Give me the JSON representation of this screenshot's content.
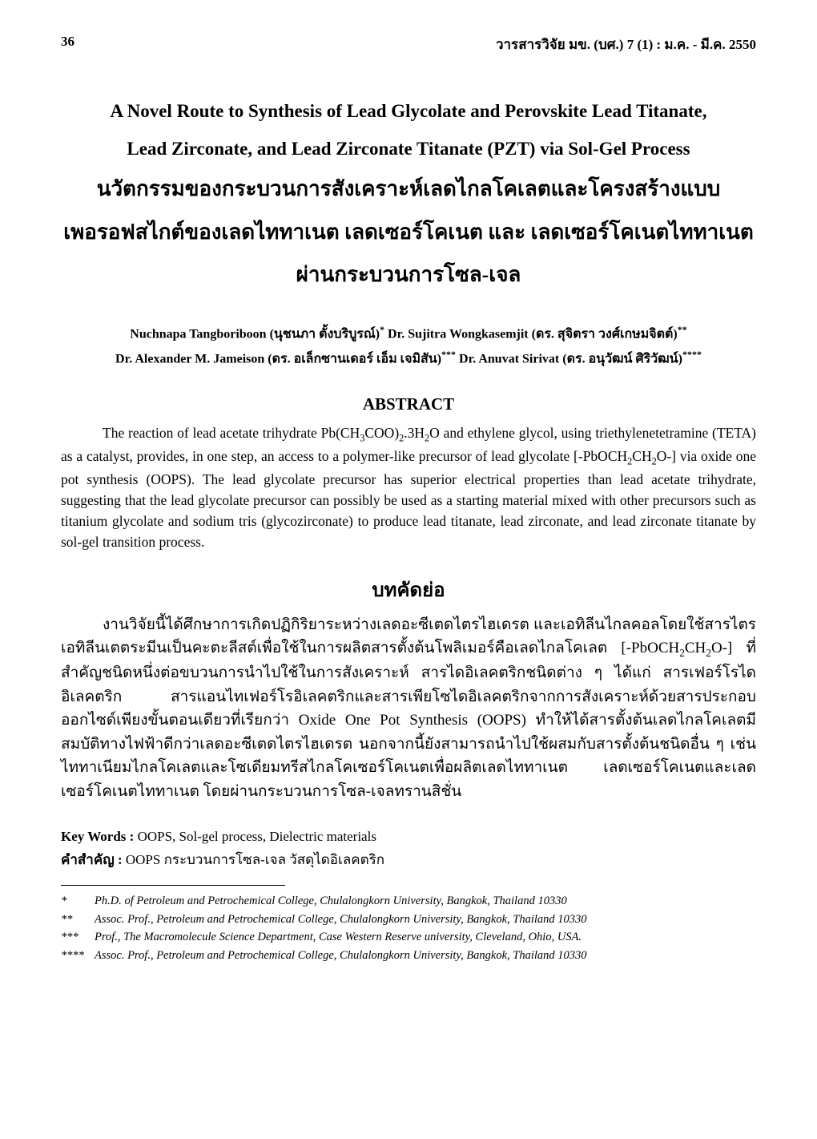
{
  "header": {
    "page_number": "36",
    "journal_ref": "วารสารวิจัย มข. (บศ.) 7 (1) : ม.ค. - มี.ค. 2550"
  },
  "title": {
    "en_line1": "A Novel Route to Synthesis of Lead Glycolate and Perovskite Lead Titanate,",
    "en_line2": "Lead Zirconate, and Lead Zirconate Titanate (PZT) via Sol-Gel Process",
    "th_line1": "นวัตกรรมของกระบวนการสังเคราะห์เลดไกลโคเลตและโครงสร้างแบบ",
    "th_line2": "เพอรอฟสไกต์ของเลดไททาเนต เลดเซอร์โคเนต และ เลดเซอร์โคเนตไททาเนต",
    "th_line3": "ผ่านกระบวนการโซล-เจล"
  },
  "authors": {
    "line1_pre": "Nuchnapa Tangboriboon (นุชนภา ตั้งบริบูรณ์)",
    "line1_sup": "*",
    "line1_mid": " Dr. Sujitra Wongkasemjit (ดร. สุจิตรา วงศ์เกษมจิตต์)",
    "line1_sup2": "**",
    "line2_a": "Dr. Alexander M. Jameison (ดร. อเล็กซานเดอร์ เอ็ม เจมิสัน)",
    "line2_sup": "***",
    "line2_b": " Dr. Anuvat  Sirivat (ดร. อนุวัฒน์ ศิริวัฒน์)",
    "line2_sup2": "****"
  },
  "abstract": {
    "heading": "ABSTRACT",
    "body_pre": "The reaction of lead acetate trihydrate Pb(CH",
    "body_s1": "3",
    "body_p2": "COO)",
    "body_s2": "2",
    "body_p3": ".3H",
    "body_s3": "2",
    "body_p4": "O and ethylene glycol, using triethylenetetramine (TETA) as a catalyst, provides, in one step, an access to a polymer-like precursor of lead glycolate [-PbOCH",
    "body_s4": "2",
    "body_p5": "CH",
    "body_s5": "2",
    "body_p6": "O-] via oxide one pot synthesis (OOPS). The lead glycolate precursor has superior electrical properties than lead acetate trihydrate, suggesting that the lead glycolate precursor can possibly be used as a starting material mixed with other precursors such as titanium glycolate and sodium tris (glycozirconate) to produce lead titanate, lead zirconate, and lead zirconate titanate by sol-gel transition process."
  },
  "abstract_th": {
    "heading": "บทคัดย่อ",
    "body_p1": "งานวิจัยนี้ได้ศึกษาการเกิดปฏิกิริยาระหว่างเลดอะซีเตดไตรไฮเดรต และเอทิลีนไกลคอลโดยใช้สารไตรเอทิลีนเตตระมีนเป็นคะตะลีสต์เพื่อใช้ในการผลิตสารตั้งต้นโพลิเมอร์คือเลดไกลโคเลต [-PbOCH",
    "body_s1": "2",
    "body_p2": "CH",
    "body_s2": "2",
    "body_p3": "O-] ที่สำคัญชนิดหนึ่งต่อขบวนการนำไปใช้ในการสังเคราะห์ สารไดอิเลคตริกชนิดต่าง ๆ ได้แก่ สารเฟอร์โรไดอิเลคตริก สารแอนไทเฟอร์โรอิเลคตริกและสารเพียโซไดอิเลคตริกจากการสังเคราะห์ด้วยสารประกอบออกไซด์เพียงขั้นตอนเดียวที่เรียกว่า Oxide One Pot Synthesis (OOPS) ทำให้ได้สารตั้งต้นเลดไกลโคเลตมีสมบัติทางไฟฟ้าดีกว่าเลดอะซีเตดไตรไฮเดรต   นอกจากนี้ยังสามารถนำไปใช้ผสมกับสารตั้งต้นชนิดอื่น ๆ เช่น ไททาเนียมไกลโคเลตและโซเดียมทรีสไกลโคเซอร์โคเนตเพื่อผลิตเลดไททาเนต   เลดเซอร์โคเนตและเลดเซอร์โคเนตไททาเนต โดยผ่านกระบวนการโซล-เจลทรานสิชั่น"
  },
  "keywords": {
    "label_en": "Key Words :",
    "value_en": " OOPS, Sol-gel process, Dielectric materials",
    "label_th": "คำสำคัญ   :",
    "value_th": " OOPS กระบวนการโซล-เจล วัสดุไดอิเลคตริก"
  },
  "footnotes": {
    "f1_mark": "*",
    "f1_text": "Ph.D. of  Petroleum and Petrochemical College, Chulalongkorn University, Bangkok, Thailand 10330",
    "f2_mark": "**",
    "f2_text": "Assoc. Prof., Petroleum and Petrochemical College, Chulalongkorn University, Bangkok, Thailand 10330",
    "f3_mark": "***",
    "f3_text": "Prof., The Macromolecule Science Department, Case Western Reserve university, Cleveland, Ohio, USA.",
    "f4_mark": "****",
    "f4_text": "Assoc. Prof., Petroleum and Petrochemical College, Chulalongkorn University, Bangkok, Thailand 10330"
  }
}
